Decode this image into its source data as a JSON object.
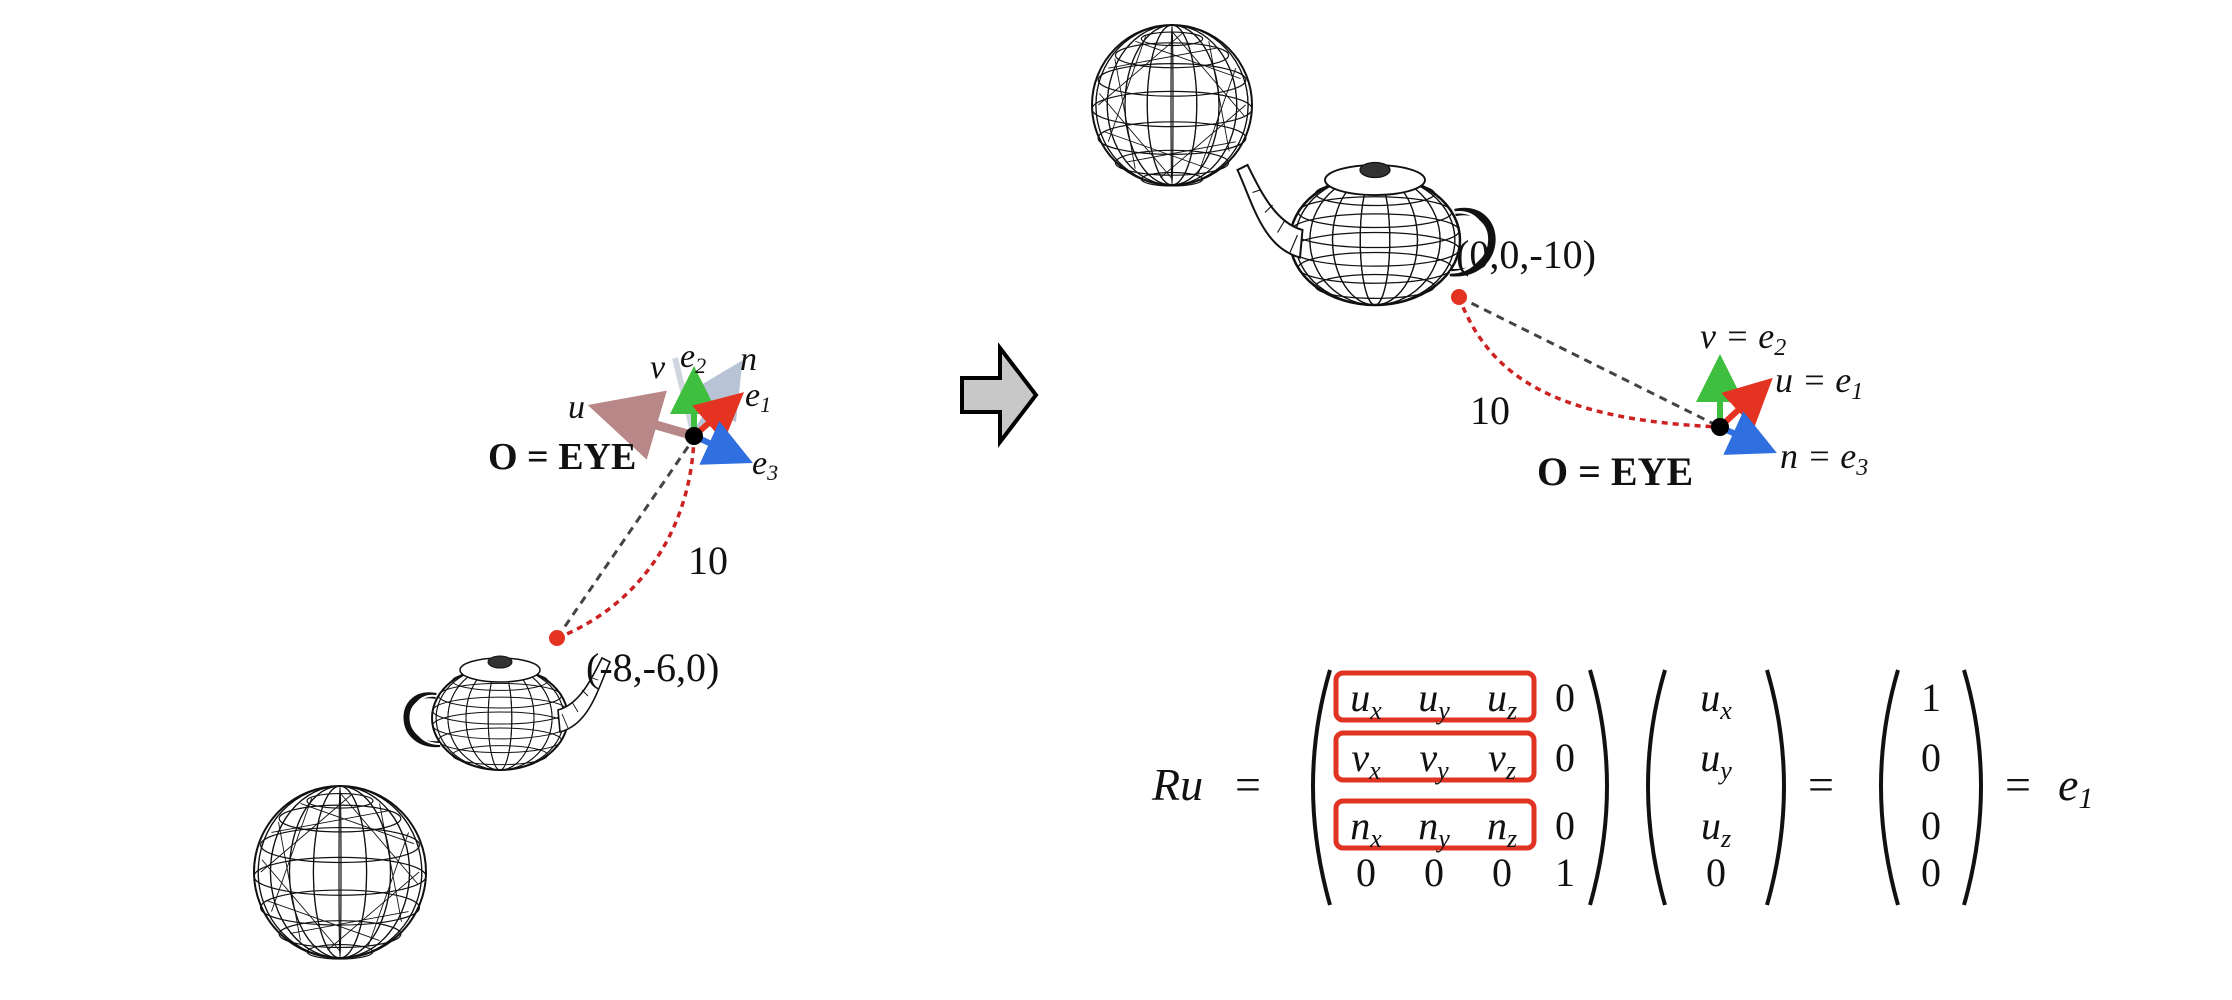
{
  "left_scene": {
    "title_label": "O = EYE",
    "point_label": "(-8,-6,0)",
    "distance_label": "10",
    "axes": {
      "u": "u",
      "v": "v",
      "n": "n",
      "e1": "e",
      "e1_sub": "1",
      "e2": "e",
      "e2_sub": "2",
      "e3": "e",
      "e3_sub": "3"
    }
  },
  "right_scene": {
    "title_label": "O = EYE",
    "point_label": "(0,0,-10)",
    "distance_label": "10",
    "axes": {
      "v_eq": "v = e",
      "v_sub": "2",
      "u_eq": "u = e",
      "u_sub": "1",
      "n_eq": "n = e",
      "n_sub": "3"
    }
  },
  "equation": {
    "lhs": "Ru",
    "eq1": "=",
    "eq2": "=",
    "eq3": "=",
    "rhs": "e",
    "rhs_sub": "1",
    "matrix": [
      [
        {
          "b": "u",
          "s": "x"
        },
        {
          "b": "u",
          "s": "y"
        },
        {
          "b": "u",
          "s": "z"
        },
        {
          "b": "0",
          "s": ""
        }
      ],
      [
        {
          "b": "v",
          "s": "x"
        },
        {
          "b": "v",
          "s": "y"
        },
        {
          "b": "v",
          "s": "z"
        },
        {
          "b": "0",
          "s": ""
        }
      ],
      [
        {
          "b": "n",
          "s": "x"
        },
        {
          "b": "n",
          "s": "y"
        },
        {
          "b": "n",
          "s": "z"
        },
        {
          "b": "0",
          "s": ""
        }
      ],
      [
        {
          "b": "0",
          "s": ""
        },
        {
          "b": "0",
          "s": ""
        },
        {
          "b": "0",
          "s": ""
        },
        {
          "b": "1",
          "s": ""
        }
      ]
    ],
    "vector_u": [
      {
        "b": "u",
        "s": "x"
      },
      {
        "b": "u",
        "s": "y"
      },
      {
        "b": "u",
        "s": "z"
      },
      {
        "b": "0",
        "s": ""
      }
    ],
    "result": [
      "1",
      "0",
      "0",
      "0"
    ]
  },
  "colors": {
    "red": "#e53322",
    "green": "#3fbf3f",
    "blue": "#2f6fe0",
    "dashed_gray": "#444444",
    "dashed_red": "#cc2222",
    "highlight_box": "#e03322",
    "arrow_fill": "#c8c8c8"
  },
  "icons": [
    "transition-arrow-icon",
    "sphere-wireframe-icon",
    "teapot-wireframe-icon"
  ]
}
